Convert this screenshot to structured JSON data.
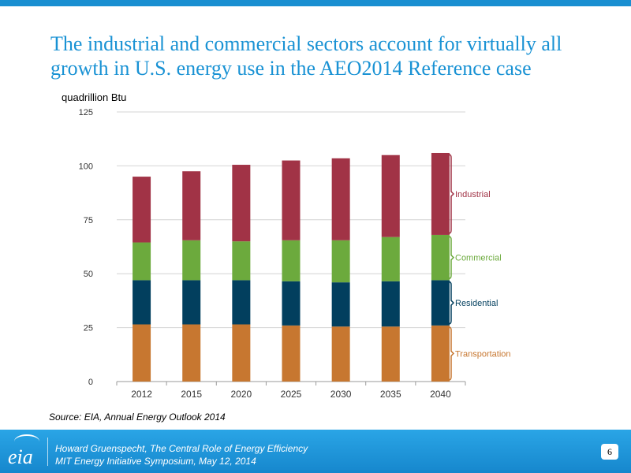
{
  "slide": {
    "title": "The industrial and commercial sectors account for virtually all growth in U.S. energy use in the AEO2014 Reference case",
    "units": "quadrillion Btu",
    "source": "Source:  EIA, Annual Energy Outlook 2014",
    "page_number": "6"
  },
  "footer": {
    "logo": "eia",
    "line1": "Howard Gruenspecht, The Central Role of Energy Efficiency",
    "line2": "MIT Energy Initiative Symposium, May 12, 2014"
  },
  "colors": {
    "accent": "#1992d4",
    "Transportation": "#c77730",
    "Residential": "#023f5e",
    "Commercial": "#6caa3d",
    "Industrial": "#a13346"
  },
  "chart_data": {
    "type": "bar",
    "stacked": true,
    "categories": [
      "2012",
      "2015",
      "2020",
      "2025",
      "2030",
      "2035",
      "2040"
    ],
    "series": [
      {
        "name": "Transportation",
        "values": [
          26.5,
          26.5,
          26.5,
          26,
          25.5,
          25.5,
          26
        ]
      },
      {
        "name": "Residential",
        "values": [
          20.5,
          20.5,
          20.5,
          20.5,
          20.5,
          21,
          21
        ]
      },
      {
        "name": "Commercial",
        "values": [
          17.5,
          18.5,
          18,
          19,
          19.5,
          20.5,
          21
        ]
      },
      {
        "name": "Industrial",
        "values": [
          30.5,
          32,
          35.5,
          37,
          38,
          38,
          38
        ]
      }
    ],
    "ylim": [
      0,
      125
    ],
    "yticks": [
      0,
      25,
      50,
      75,
      100,
      125
    ],
    "ylabel": "quadrillion Btu",
    "grid": true,
    "legend": "right, bracketed labels"
  }
}
